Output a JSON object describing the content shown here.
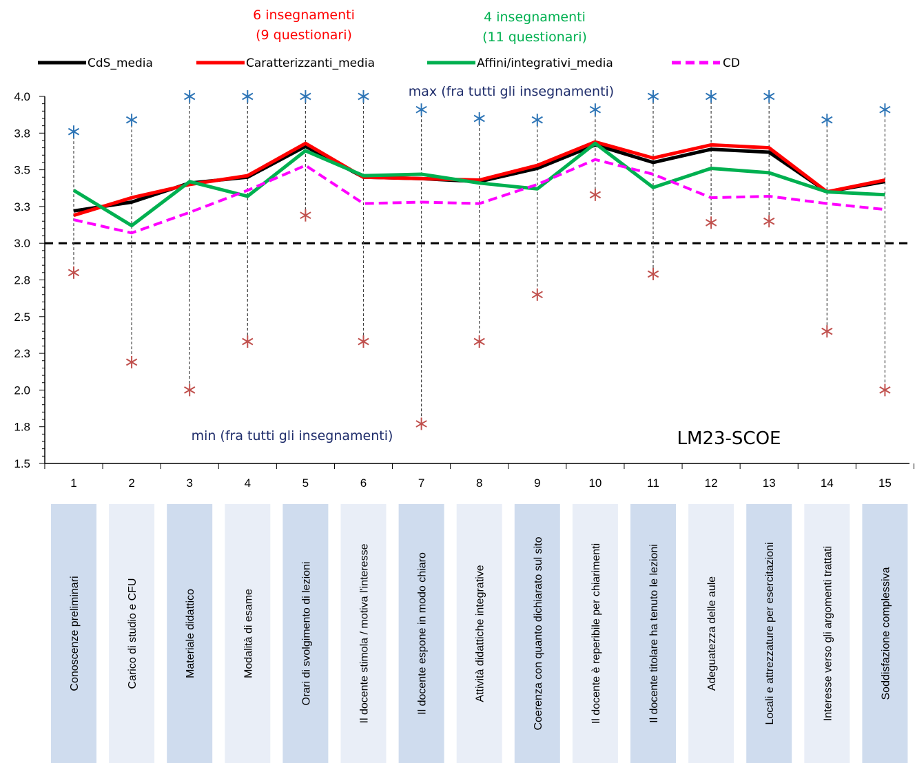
{
  "chart_data": {
    "type": "line",
    "title": "LM23-SCOE",
    "x": [
      1,
      2,
      3,
      4,
      5,
      6,
      7,
      8,
      9,
      10,
      11,
      12,
      13,
      14,
      15
    ],
    "categories": [
      "Conoscenze preliminari",
      "Carico di studio e CFU",
      "Materiale didattico",
      "Modalità di esame",
      "Orari di svolgimento di lezioni",
      "Il docente stimola / motiva l'interesse",
      "Il docente espone in modo chiaro",
      "Attività didattiche integrative",
      "Coerenza con quanto dichiarato sul sito",
      "Il docente è reperibile per chiarimenti",
      "Il docente titolare ha tenuto le lezioni",
      "Adeguatezza delle aule",
      "Locali e attrezzature per esercitazioni",
      "Interesse verso gli argomenti trattati",
      "Soddisfazione complessiva"
    ],
    "ylim": [
      1.5,
      4.0
    ],
    "yticks": [
      "4.0",
      "3.8",
      "3.5",
      "3.3",
      "3.0",
      "2.8",
      "2.5",
      "2.3",
      "2.0",
      "1.8",
      "1.5"
    ],
    "ytick_values": [
      4.0,
      3.75,
      3.5,
      3.25,
      3.0,
      2.75,
      2.5,
      2.25,
      2.0,
      1.75,
      1.5
    ],
    "threshold": 3.0,
    "series": [
      {
        "name": "CdS_media",
        "color": "#000000",
        "style": "solid",
        "values": [
          3.22,
          3.28,
          3.41,
          3.45,
          3.66,
          3.45,
          3.44,
          3.42,
          3.51,
          3.67,
          3.55,
          3.64,
          3.62,
          3.35,
          3.42
        ]
      },
      {
        "name": "Caratterizzanti_media",
        "color": "#ff0000",
        "style": "solid",
        "values": [
          3.19,
          3.31,
          3.4,
          3.46,
          3.68,
          3.45,
          3.44,
          3.43,
          3.53,
          3.69,
          3.58,
          3.67,
          3.65,
          3.35,
          3.43
        ]
      },
      {
        "name": "Affini/integrativi_media",
        "color": "#00b050",
        "style": "solid",
        "values": [
          3.36,
          3.12,
          3.42,
          3.32,
          3.63,
          3.46,
          3.47,
          3.41,
          3.37,
          3.68,
          3.38,
          3.51,
          3.48,
          3.35,
          3.33
        ]
      },
      {
        "name": "CD",
        "color": "#ff00ff",
        "style": "dashed",
        "values": [
          3.16,
          3.07,
          3.21,
          3.36,
          3.53,
          3.27,
          3.28,
          3.27,
          3.4,
          3.57,
          3.47,
          3.31,
          3.32,
          3.27,
          3.23
        ]
      }
    ],
    "max_values": [
      3.76,
      3.84,
      4.0,
      4.0,
      4.0,
      4.0,
      3.91,
      3.85,
      3.84,
      3.91,
      4.0,
      4.0,
      4.0,
      3.84,
      3.91
    ],
    "min_values": [
      2.8,
      2.19,
      2.0,
      2.33,
      3.19,
      2.33,
      1.77,
      2.33,
      2.65,
      3.33,
      2.79,
      3.14,
      3.15,
      2.4,
      2.0
    ],
    "annotations": {
      "max_label": "max (fra tutti gli insegnamenti)",
      "min_label": "min (fra tutti gli insegnamenti)",
      "car_line1": "6 insegnamenti",
      "car_line2": "(9 questionari)",
      "aff_line1": "4 insegnamenti",
      "aff_line2": "(11 questionari)"
    },
    "colors": {
      "max_marker": "#2e75b6",
      "min_marker": "#c0504d",
      "label_box_dark": "#cfdcee",
      "label_box_light": "#e9eef7",
      "annot_blue": "#1f2d6b"
    },
    "legend_position": "top"
  }
}
